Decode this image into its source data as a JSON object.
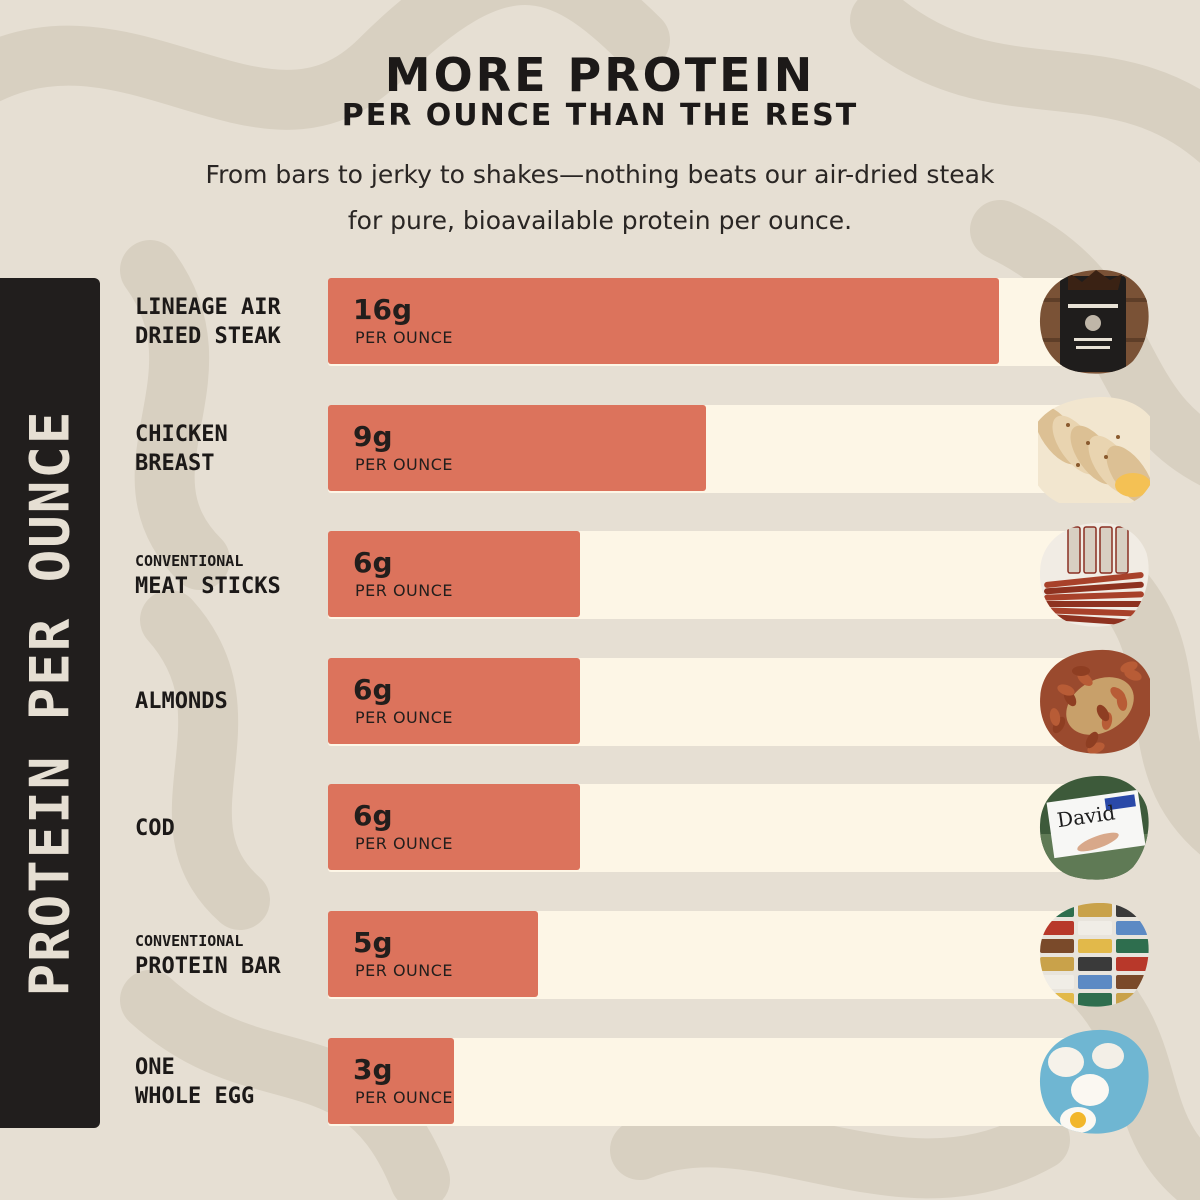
{
  "header": {
    "title": "MORE PROTEIN",
    "subtitle": "PER OUNCE THAN THE REST",
    "description_line1": "From bars to jerky to shakes—nothing beats our air-dried steak",
    "description_line2": "for pure, bioavailable protein per ounce."
  },
  "side_label": "PROTEIN PER OUNCE",
  "colors": {
    "background": "#e6dfd3",
    "swirl": "#d8d0c1",
    "bar": "#dc735c",
    "track": "#fdf6e6",
    "panel": "#211e1d",
    "text": "#1c1918"
  },
  "chart_data": {
    "type": "bar",
    "orientation": "horizontal",
    "unit": "g per ounce",
    "xlim": [
      0,
      18
    ],
    "categories": [
      "LINEAGE AIR DRIED STEAK",
      "CHICKEN BREAST",
      "CONVENTIONAL MEAT STICKS",
      "ALMONDS",
      "COD",
      "CONVENTIONAL PROTEIN BAR",
      "ONE WHOLE EGG"
    ],
    "values": [
      16,
      9,
      6,
      6,
      6,
      5,
      3
    ],
    "rows": [
      {
        "label_lines": [
          "LINEAGE AIR",
          "DRIED STEAK"
        ],
        "small_first": false,
        "value": 16,
        "value_text": "16g",
        "unit_text": "PER OUNCE",
        "icon": "steak-bag-icon"
      },
      {
        "label_lines": [
          "CHICKEN",
          "BREAST"
        ],
        "small_first": false,
        "value": 9,
        "value_text": "9g",
        "unit_text": "PER OUNCE",
        "icon": "chicken-breast-icon"
      },
      {
        "label_lines": [
          "CONVENTIONAL",
          "MEAT STICKS"
        ],
        "small_first": true,
        "value": 6,
        "value_text": "6g",
        "unit_text": "PER OUNCE",
        "icon": "meat-sticks-icon"
      },
      {
        "label_lines": [
          "ALMONDS"
        ],
        "small_first": false,
        "value": 6,
        "value_text": "6g",
        "unit_text": "PER OUNCE",
        "icon": "almonds-icon"
      },
      {
        "label_lines": [
          "COD"
        ],
        "small_first": false,
        "value": 6,
        "value_text": "6g",
        "unit_text": "PER OUNCE",
        "icon": "protein-bar-package-icon",
        "icon_text": "David"
      },
      {
        "label_lines": [
          "CONVENTIONAL",
          "PROTEIN BAR"
        ],
        "small_first": true,
        "value": 5,
        "value_text": "5g",
        "unit_text": "PER OUNCE",
        "icon": "protein-bars-icon"
      },
      {
        "label_lines": [
          "ONE",
          "WHOLE EGG"
        ],
        "small_first": false,
        "value": 3,
        "value_text": "3g",
        "unit_text": "PER OUNCE",
        "icon": "eggs-icon"
      }
    ]
  }
}
